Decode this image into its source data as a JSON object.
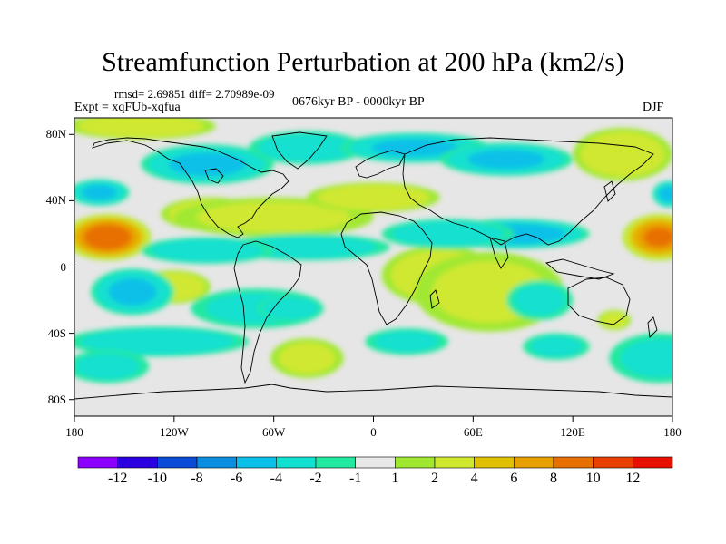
{
  "title": "Streamfunction Perturbation at 200 hPa (km2/s)",
  "stats": "rmsd= 2.69851 diff= 2.70989e-09",
  "experiment": "Expt = xqFUb-xqfua",
  "period": "0676kyr BP - 0000kyr BP",
  "season": "DJF",
  "map": {
    "projection": "cylindrical equidistant",
    "lon_range": [
      -180,
      180
    ],
    "lat_range": [
      -90,
      90
    ],
    "ocean_fill": "#e6e6e6",
    "coastline_color": "#000000",
    "lat_ticks": [
      {
        "value": 80,
        "label": "80N"
      },
      {
        "value": 40,
        "label": "40N"
      },
      {
        "value": 0,
        "label": "0"
      },
      {
        "value": -40,
        "label": "40S"
      },
      {
        "value": -80,
        "label": "80S"
      }
    ],
    "lon_ticks": [
      {
        "value": -180,
        "label": "180"
      },
      {
        "value": -120,
        "label": "120W"
      },
      {
        "value": -60,
        "label": "60W"
      },
      {
        "value": 0,
        "label": "0"
      },
      {
        "value": 60,
        "label": "60E"
      },
      {
        "value": 120,
        "label": "120E"
      },
      {
        "value": 180,
        "label": "180"
      }
    ],
    "anomalies": [
      {
        "lon": -160,
        "lat": 18,
        "value": 9.5,
        "rx": 26,
        "ry": 14
      },
      {
        "lon": 172,
        "lat": 18,
        "value": 8,
        "rx": 22,
        "ry": 14
      },
      {
        "lon": -98,
        "lat": 32,
        "value": 3,
        "rx": 30,
        "ry": 10
      },
      {
        "lon": -48,
        "lat": 32,
        "value": 3,
        "rx": 30,
        "ry": 9
      },
      {
        "lon": -60,
        "lat": 30,
        "value": 2,
        "rx": 60,
        "ry": 12
      },
      {
        "lon": 0,
        "lat": 42,
        "value": 3,
        "rx": 40,
        "ry": 9
      },
      {
        "lon": 150,
        "lat": 68,
        "value": 3,
        "rx": 30,
        "ry": 16
      },
      {
        "lon": -140,
        "lat": 85,
        "value": 3,
        "rx": 45,
        "ry": 8
      },
      {
        "lon": -120,
        "lat": -12,
        "value": 3,
        "rx": 22,
        "ry": 10
      },
      {
        "lon": 40,
        "lat": -5,
        "value": 3,
        "rx": 35,
        "ry": 18
      },
      {
        "lon": 70,
        "lat": -15,
        "value": 2,
        "rx": 45,
        "ry": 24
      },
      {
        "lon": -40,
        "lat": -55,
        "value": 2,
        "rx": 22,
        "ry": 12
      },
      {
        "lon": -165,
        "lat": 45,
        "value": -4,
        "rx": 18,
        "ry": 8
      },
      {
        "lon": 178,
        "lat": 44,
        "value": -4,
        "rx": 10,
        "ry": 8
      },
      {
        "lon": 85,
        "lat": 20,
        "value": -5,
        "rx": 45,
        "ry": 9
      },
      {
        "lon": 45,
        "lat": 20,
        "value": -3,
        "rx": 40,
        "ry": 9
      },
      {
        "lon": -40,
        "lat": 12,
        "value": -3,
        "rx": 50,
        "ry": 8
      },
      {
        "lon": -100,
        "lat": 10,
        "value": -3,
        "rx": 40,
        "ry": 8
      },
      {
        "lon": -100,
        "lat": 62,
        "value": -4,
        "rx": 40,
        "ry": 12
      },
      {
        "lon": -40,
        "lat": 72,
        "value": -3,
        "rx": 35,
        "ry": 10
      },
      {
        "lon": 25,
        "lat": 72,
        "value": -4,
        "rx": 45,
        "ry": 9
      },
      {
        "lon": 80,
        "lat": 65,
        "value": -4,
        "rx": 40,
        "ry": 10
      },
      {
        "lon": -145,
        "lat": -15,
        "value": -4,
        "rx": 25,
        "ry": 14
      },
      {
        "lon": -70,
        "lat": -25,
        "value": -2,
        "rx": 40,
        "ry": 12
      },
      {
        "lon": -50,
        "lat": -25,
        "value": -3,
        "rx": 20,
        "ry": 8
      },
      {
        "lon": -130,
        "lat": -45,
        "value": -3,
        "rx": 55,
        "ry": 9
      },
      {
        "lon": 20,
        "lat": -45,
        "value": -2,
        "rx": 25,
        "ry": 8
      },
      {
        "lon": 100,
        "lat": -20,
        "value": -2,
        "rx": 20,
        "ry": 12
      },
      {
        "lon": 110,
        "lat": -48,
        "value": -2,
        "rx": 20,
        "ry": 8
      },
      {
        "lon": 172,
        "lat": -55,
        "value": -2,
        "rx": 30,
        "ry": 15
      },
      {
        "lon": -160,
        "lat": -60,
        "value": -2,
        "rx": 25,
        "ry": 10
      },
      {
        "lon": 145,
        "lat": -32,
        "value": 2,
        "rx": 10,
        "ry": 6
      }
    ]
  },
  "colorbar": {
    "colors": [
      "#8b00ff",
      "#2d00e0",
      "#0a4cd8",
      "#0a8ee0",
      "#0ac0e8",
      "#12e0d0",
      "#22e8a0",
      "#e8e8e8",
      "#a0e830",
      "#d0e830",
      "#e0c000",
      "#e8a000",
      "#e87000",
      "#e84000",
      "#e81000"
    ],
    "labels": [
      "-12",
      "-10",
      "-8",
      "-6",
      "-4",
      "-2",
      "-1",
      "1",
      "2",
      "4",
      "6",
      "8",
      "10",
      "12"
    ]
  }
}
